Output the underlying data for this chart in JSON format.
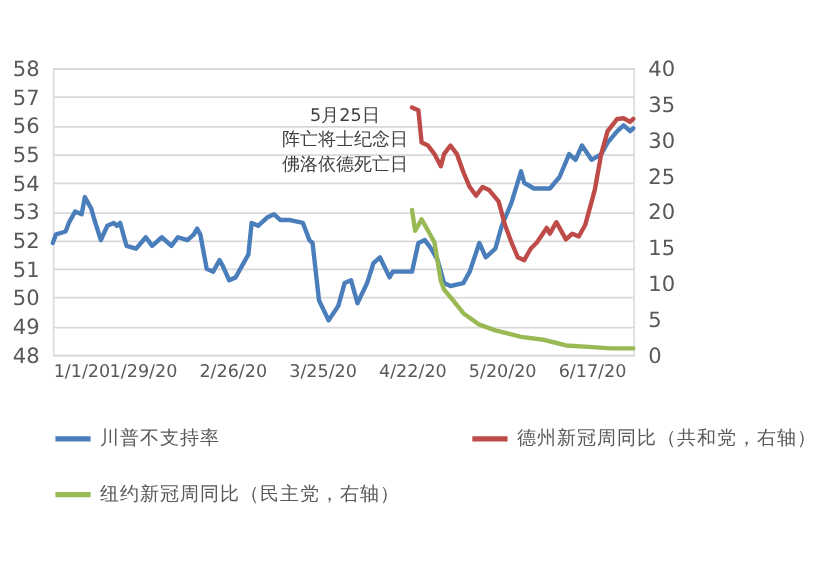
{
  "chart_data": {
    "type": "line",
    "xlim": [
      "2020-01-01",
      "2020-06-30"
    ],
    "xticks": [
      {
        "value": "2020-01-01",
        "label": "1/1/20"
      },
      {
        "value": "2020-01-29",
        "label": "1/29/20"
      },
      {
        "value": "2020-02-26",
        "label": "2/26/20"
      },
      {
        "value": "2020-03-25",
        "label": "3/25/20"
      },
      {
        "value": "2020-04-22",
        "label": "4/22/20"
      },
      {
        "value": "2020-05-20",
        "label": "5/20/20"
      },
      {
        "value": "2020-06-17",
        "label": "6/17/20"
      }
    ],
    "ylim": [
      48,
      58
    ],
    "yticks": [
      48,
      49,
      50,
      51,
      52,
      53,
      54,
      55,
      56,
      57,
      58
    ],
    "y2lim": [
      0,
      40
    ],
    "y2ticks": [
      0,
      5,
      10,
      15,
      20,
      25,
      30,
      35,
      40
    ],
    "grid": "y",
    "legend": "bottom",
    "line_style": "solid",
    "annotations": [
      "5月25日",
      "阵亡将士纪念日",
      "佛洛依德死亡日"
    ],
    "series": [
      {
        "name": "川普不支持率",
        "color": "#4a7ebb",
        "x": [
          "2020-01-01",
          "2020-01-02",
          "2020-01-05",
          "2020-01-06",
          "2020-01-08",
          "2020-01-10",
          "2020-01-11",
          "2020-01-13",
          "2020-01-14",
          "2020-01-16",
          "2020-01-18",
          "2020-01-20",
          "2020-01-21",
          "2020-01-22",
          "2020-01-24",
          "2020-01-27",
          "2020-01-30",
          "2020-02-01",
          "2020-02-04",
          "2020-02-07",
          "2020-02-09",
          "2020-02-12",
          "2020-02-14",
          "2020-02-15",
          "2020-02-16",
          "2020-02-18",
          "2020-02-20",
          "2020-02-22",
          "2020-02-23",
          "2020-02-25",
          "2020-02-27",
          "2020-02-29",
          "2020-03-02",
          "2020-03-03",
          "2020-03-05",
          "2020-03-08",
          "2020-03-10",
          "2020-03-12",
          "2020-03-15",
          "2020-03-19",
          "2020-03-21",
          "2020-03-22",
          "2020-03-24",
          "2020-03-27",
          "2020-03-30",
          "2020-04-01",
          "2020-04-03",
          "2020-04-05",
          "2020-04-08",
          "2020-04-10",
          "2020-04-12",
          "2020-04-15",
          "2020-04-16",
          "2020-04-19",
          "2020-04-22",
          "2020-04-24",
          "2020-04-26",
          "2020-04-28",
          "2020-04-30",
          "2020-05-02",
          "2020-05-04",
          "2020-05-08",
          "2020-05-10",
          "2020-05-13",
          "2020-05-15",
          "2020-05-18",
          "2020-05-20",
          "2020-05-23",
          "2020-05-26",
          "2020-05-27",
          "2020-05-30",
          "2020-06-02",
          "2020-06-04",
          "2020-06-07",
          "2020-06-10",
          "2020-06-12",
          "2020-06-14",
          "2020-06-17",
          "2020-06-20",
          "2020-06-22",
          "2020-06-25",
          "2020-06-27",
          "2020-06-29",
          "2020-06-30"
        ],
        "values": [
          51.9,
          52.2,
          52.3,
          52.6,
          53.0,
          52.9,
          53.5,
          53.1,
          52.7,
          52.0,
          52.5,
          52.6,
          52.5,
          52.6,
          51.8,
          51.7,
          52.1,
          51.8,
          52.1,
          51.8,
          52.1,
          52.0,
          52.2,
          52.4,
          52.2,
          51.0,
          50.9,
          51.3,
          51.1,
          50.6,
          50.7,
          51.1,
          51.5,
          52.6,
          52.5,
          52.8,
          52.9,
          52.7,
          52.7,
          52.6,
          52.0,
          51.9,
          49.9,
          49.2,
          49.7,
          50.5,
          50.6,
          49.8,
          50.5,
          51.2,
          51.4,
          50.7,
          50.9,
          50.9,
          50.9,
          51.9,
          52.0,
          51.7,
          51.3,
          50.5,
          50.4,
          50.5,
          50.9,
          51.9,
          51.4,
          51.7,
          52.5,
          53.3,
          54.4,
          54.0,
          53.8,
          53.8,
          53.8,
          54.2,
          55.0,
          54.8,
          55.3,
          54.8,
          55.0,
          55.4,
          55.8,
          56.0,
          55.8,
          55.9
        ]
      },
      {
        "name": "德州新冠周同比（共和党，右轴）",
        "color": "#be4b48",
        "axis": "y2",
        "x": [
          "2020-04-22",
          "2020-04-24",
          "2020-04-25",
          "2020-04-27",
          "2020-04-29",
          "2020-05-01",
          "2020-05-02",
          "2020-05-04",
          "2020-05-06",
          "2020-05-08",
          "2020-05-10",
          "2020-05-12",
          "2020-05-14",
          "2020-05-16",
          "2020-05-19",
          "2020-05-21",
          "2020-05-23",
          "2020-05-25",
          "2020-05-27",
          "2020-05-29",
          "2020-05-31",
          "2020-06-03",
          "2020-06-04",
          "2020-06-06",
          "2020-06-09",
          "2020-06-11",
          "2020-06-13",
          "2020-06-15",
          "2020-06-18",
          "2020-06-20",
          "2020-06-22",
          "2020-06-25",
          "2020-06-27",
          "2020-06-29",
          "2020-06-30"
        ],
        "values": [
          34.5,
          34.1,
          29.6,
          29.2,
          28.0,
          26.3,
          28.0,
          29.2,
          28.0,
          25.5,
          23.4,
          22.2,
          23.4,
          23.0,
          21.4,
          18.1,
          15.7,
          13.6,
          13.2,
          14.8,
          15.7,
          17.7,
          16.9,
          18.5,
          16.1,
          16.9,
          16.5,
          18.1,
          23.0,
          28.0,
          31.2,
          32.9,
          33.0,
          32.5,
          32.9
        ]
      },
      {
        "name": "纽约新冠周同比（民主党，右轴）",
        "color": "#98b954",
        "axis": "y2",
        "x": [
          "2020-04-22",
          "2020-04-23",
          "2020-04-25",
          "2020-04-27",
          "2020-04-29",
          "2020-05-01",
          "2020-05-02",
          "2020-05-05",
          "2020-05-08",
          "2020-05-13",
          "2020-05-18",
          "2020-05-26",
          "2020-06-02",
          "2020-06-09",
          "2020-06-16",
          "2020-06-23",
          "2020-06-30"
        ],
        "values": [
          20.2,
          17.3,
          18.9,
          17.3,
          15.7,
          10.3,
          9.1,
          7.5,
          5.8,
          4.2,
          3.4,
          2.5,
          2.1,
          1.3,
          1.1,
          0.9,
          0.9
        ]
      }
    ]
  }
}
